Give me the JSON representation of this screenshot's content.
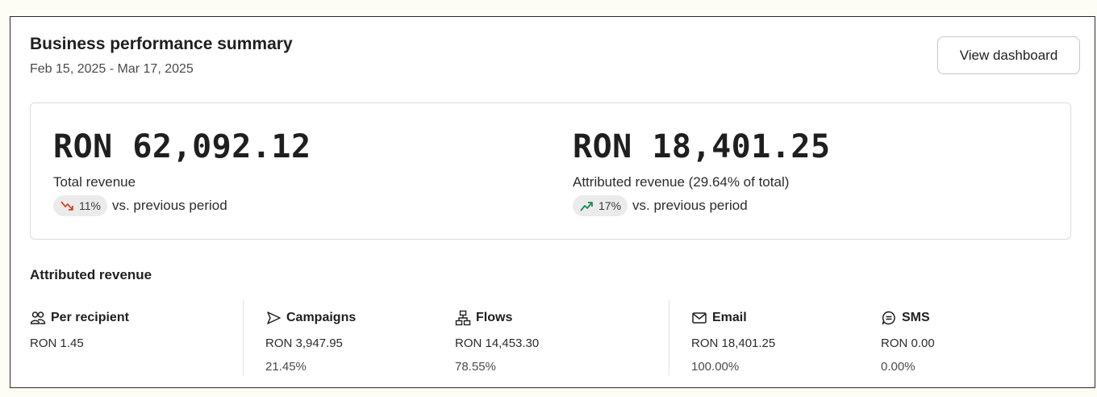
{
  "header": {
    "title": "Business performance summary",
    "date_range": "Feb 15, 2025 - Mar 17, 2025",
    "view_button_label": "View dashboard"
  },
  "summary": {
    "total": {
      "value": "RON 62,092.12",
      "label": "Total revenue",
      "change_percent": "11%",
      "change_direction": "down",
      "change_icon": "trend-down-icon",
      "change_color": "#d9442f",
      "change_suffix": "vs. previous period"
    },
    "attributed": {
      "value": "RON 18,401.25",
      "label": "Attributed revenue (29.64% of total)",
      "change_percent": "17%",
      "change_direction": "up",
      "change_icon": "trend-up-icon",
      "change_color": "#1e8a4c",
      "change_suffix": "vs. previous period"
    }
  },
  "attributed_section": {
    "title": "Attributed revenue",
    "columns": [
      {
        "name": "Per recipient",
        "icon": "users-icon",
        "value": "RON 1.45",
        "percent": ""
      },
      {
        "name": "Campaigns",
        "icon": "send-icon",
        "value": "RON 3,947.95",
        "percent": "21.45%"
      },
      {
        "name": "Flows",
        "icon": "flow-icon",
        "value": "RON 14,453.30",
        "percent": "78.55%"
      },
      {
        "name": "Email",
        "icon": "mail-icon",
        "value": "RON 18,401.25",
        "percent": "100.00%"
      },
      {
        "name": "SMS",
        "icon": "sms-icon",
        "value": "RON 0.00",
        "percent": "0.00%"
      }
    ]
  }
}
